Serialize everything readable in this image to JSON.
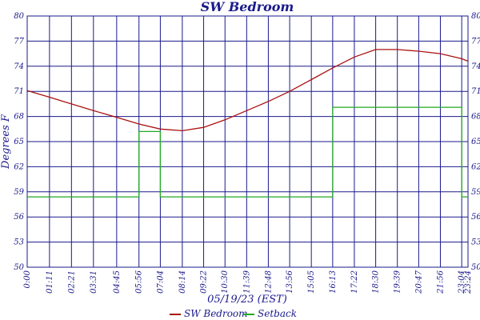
{
  "chart_data": {
    "type": "line",
    "title": "SW Bedroom",
    "xlabel": "05/19/23 (EST)",
    "ylabel": "Degrees F",
    "ylim": [
      50,
      80
    ],
    "y_ticks": [
      "50",
      "53",
      "56",
      "59",
      "62",
      "65",
      "68",
      "71",
      "74",
      "77",
      "80"
    ],
    "x_ticks": [
      "0:00",
      "01:11",
      "02:21",
      "03:31",
      "04:45",
      "05:56",
      "07:04",
      "08:14",
      "09:22",
      "10:30",
      "11:39",
      "12:48",
      "13:56",
      "15:05",
      "16:13",
      "17:22",
      "18:30",
      "19:39",
      "20:47",
      "21:56",
      "23:04",
      "23:24"
    ],
    "grid": true,
    "legend_position": "bottom",
    "colors": {
      "sw_bedroom": "#aa1111",
      "setback": "#22aa22",
      "grid": "#1a1a8c",
      "text": "#1a1a8c"
    },
    "series": [
      {
        "name": "SW Bedroom",
        "x": [
          "0:00",
          "01:11",
          "02:21",
          "03:31",
          "04:45",
          "05:56",
          "07:04",
          "08:14",
          "09:22",
          "10:30",
          "11:39",
          "12:48",
          "13:56",
          "15:05",
          "16:13",
          "17:22",
          "18:30",
          "19:39",
          "20:47",
          "21:56",
          "23:04",
          "23:24"
        ],
        "values": [
          71.1,
          70.3,
          69.5,
          68.7,
          67.9,
          67.1,
          66.5,
          66.3,
          66.7,
          67.6,
          68.7,
          69.8,
          71.0,
          72.4,
          73.8,
          75.1,
          76.0,
          76.0,
          75.8,
          75.5,
          74.9,
          74.6
        ]
      },
      {
        "name": "Setback",
        "x": [
          "0:00",
          "05:56",
          "05:56",
          "07:04",
          "07:04",
          "16:13",
          "16:13",
          "23:04",
          "23:04",
          "23:24"
        ],
        "values": [
          58.4,
          58.4,
          66.2,
          66.2,
          58.4,
          58.4,
          69.1,
          69.1,
          58.4,
          58.4
        ]
      }
    ]
  }
}
